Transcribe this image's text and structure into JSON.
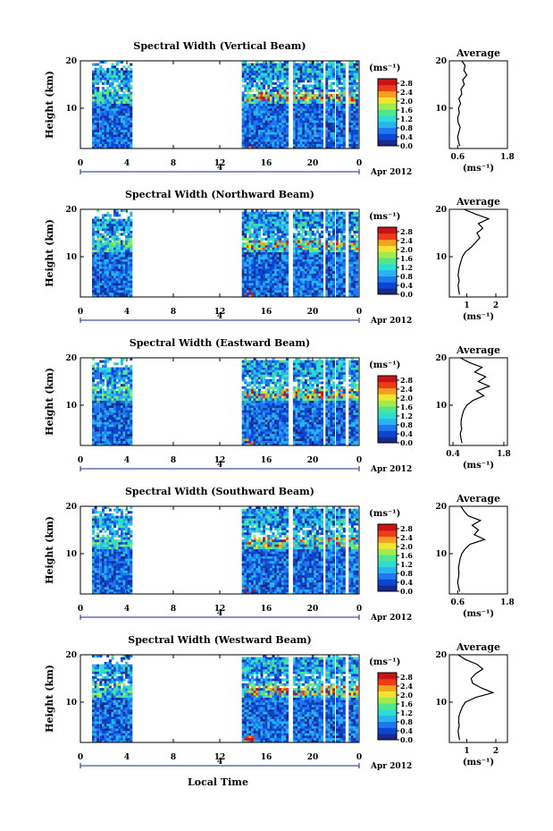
{
  "chart_data": {
    "type": "heatmap",
    "xlabel": "Local Time",
    "date_label": "Apr 2012",
    "day_label": "4",
    "x_ticks": [
      "0",
      "4",
      "8",
      "12",
      "16",
      "20",
      "0"
    ],
    "xlim": [
      0,
      24
    ],
    "ylabel": "Height (km)",
    "y_ticks": [
      "20",
      "10"
    ],
    "ylim": [
      1.5,
      20
    ],
    "colorbar": {
      "unit": "(ms⁻¹)",
      "ticks": [
        "2.8",
        "2.4",
        "2.0",
        "1.6",
        "1.2",
        "0.8",
        "0.4",
        "0.0"
      ],
      "range": [
        0.0,
        3.0
      ],
      "colors": [
        "#1a2a8a",
        "#0a46d2",
        "#1e78f0",
        "#28b4f0",
        "#2ddcd2",
        "#50e690",
        "#a0eb50",
        "#f0e632",
        "#f5a01e",
        "#ef3c18",
        "#c81414"
      ]
    },
    "profile_title": "Average",
    "profile_xlabel": "(ms⁻¹)",
    "profile_yticks": [
      "20",
      "10"
    ],
    "panels": [
      {
        "title": "Spectral Width (Vertical Beam)",
        "profile_xticks": [
          "0.6",
          "1.8"
        ],
        "profile_xlim": [
          0.4,
          1.8
        ],
        "profile": [
          [
            2,
            0.65
          ],
          [
            3,
            0.62
          ],
          [
            4,
            0.6
          ],
          [
            5,
            0.63
          ],
          [
            6,
            0.66
          ],
          [
            7,
            0.61
          ],
          [
            8,
            0.6
          ],
          [
            9,
            0.64
          ],
          [
            10,
            0.62
          ],
          [
            11,
            0.67
          ],
          [
            12,
            0.63
          ],
          [
            13,
            0.7
          ],
          [
            14,
            0.68
          ],
          [
            15,
            0.76
          ],
          [
            16,
            0.72
          ],
          [
            17,
            0.82
          ],
          [
            18,
            0.75
          ],
          [
            19,
            0.78
          ],
          [
            20,
            0.7
          ]
        ]
      },
      {
        "title": "Spectral Width (Northward Beam)",
        "profile_xticks": [
          "1",
          "2"
        ],
        "profile_xlim": [
          0.4,
          2.4
        ],
        "profile": [
          [
            2,
            0.75
          ],
          [
            3,
            0.72
          ],
          [
            4,
            0.7
          ],
          [
            5,
            0.74
          ],
          [
            6,
            0.7
          ],
          [
            7,
            0.72
          ],
          [
            8,
            0.75
          ],
          [
            9,
            0.8
          ],
          [
            10,
            0.85
          ],
          [
            11,
            0.95
          ],
          [
            12,
            1.15
          ],
          [
            13,
            1.3
          ],
          [
            14,
            1.45
          ],
          [
            15,
            1.35
          ],
          [
            16,
            1.55
          ],
          [
            17,
            1.4
          ],
          [
            18,
            1.75
          ],
          [
            19,
            1.3
          ],
          [
            20,
            0.9
          ]
        ]
      },
      {
        "title": "Spectral Width (Eastward Beam)",
        "profile_xticks": [
          "0.4",
          "1.8"
        ],
        "profile_xlim": [
          0.3,
          1.9
        ],
        "profile": [
          [
            2,
            0.65
          ],
          [
            3,
            0.62
          ],
          [
            4,
            0.6
          ],
          [
            5,
            0.64
          ],
          [
            6,
            0.62
          ],
          [
            7,
            0.63
          ],
          [
            8,
            0.66
          ],
          [
            9,
            0.7
          ],
          [
            10,
            0.78
          ],
          [
            11,
            0.95
          ],
          [
            12,
            1.25
          ],
          [
            13,
            1.05
          ],
          [
            14,
            1.4
          ],
          [
            15,
            1.1
          ],
          [
            16,
            1.3
          ],
          [
            17,
            1.0
          ],
          [
            18,
            1.2
          ],
          [
            19,
            0.85
          ],
          [
            20,
            0.6
          ]
        ]
      },
      {
        "title": "Spectral Width (Southward Beam)",
        "profile_xticks": [
          "0.6",
          "1.8"
        ],
        "profile_xlim": [
          0.4,
          1.8
        ],
        "profile": [
          [
            2,
            0.65
          ],
          [
            3,
            0.62
          ],
          [
            4,
            0.6
          ],
          [
            5,
            0.62
          ],
          [
            6,
            0.63
          ],
          [
            7,
            0.62
          ],
          [
            8,
            0.64
          ],
          [
            9,
            0.66
          ],
          [
            10,
            0.7
          ],
          [
            11,
            0.78
          ],
          [
            12,
            0.9
          ],
          [
            13,
            1.25
          ],
          [
            14,
            1.0
          ],
          [
            15,
            1.1
          ],
          [
            16,
            0.95
          ],
          [
            17,
            1.15
          ],
          [
            18,
            0.85
          ],
          [
            19,
            0.75
          ],
          [
            20,
            0.68
          ]
        ]
      },
      {
        "title": "Spectral Width (Westward Beam)",
        "profile_xticks": [
          "1",
          "2"
        ],
        "profile_xlim": [
          0.4,
          2.4
        ],
        "profile": [
          [
            2,
            0.75
          ],
          [
            3,
            0.72
          ],
          [
            4,
            0.7
          ],
          [
            5,
            0.74
          ],
          [
            6,
            0.72
          ],
          [
            7,
            0.73
          ],
          [
            8,
            0.78
          ],
          [
            9,
            0.85
          ],
          [
            10,
            0.95
          ],
          [
            11,
            1.3
          ],
          [
            12,
            1.9
          ],
          [
            13,
            1.5
          ],
          [
            14,
            1.2
          ],
          [
            15,
            1.15
          ],
          [
            16,
            1.3
          ],
          [
            17,
            1.55
          ],
          [
            18,
            1.35
          ],
          [
            19,
            0.95
          ],
          [
            20,
            0.7
          ]
        ]
      }
    ]
  }
}
